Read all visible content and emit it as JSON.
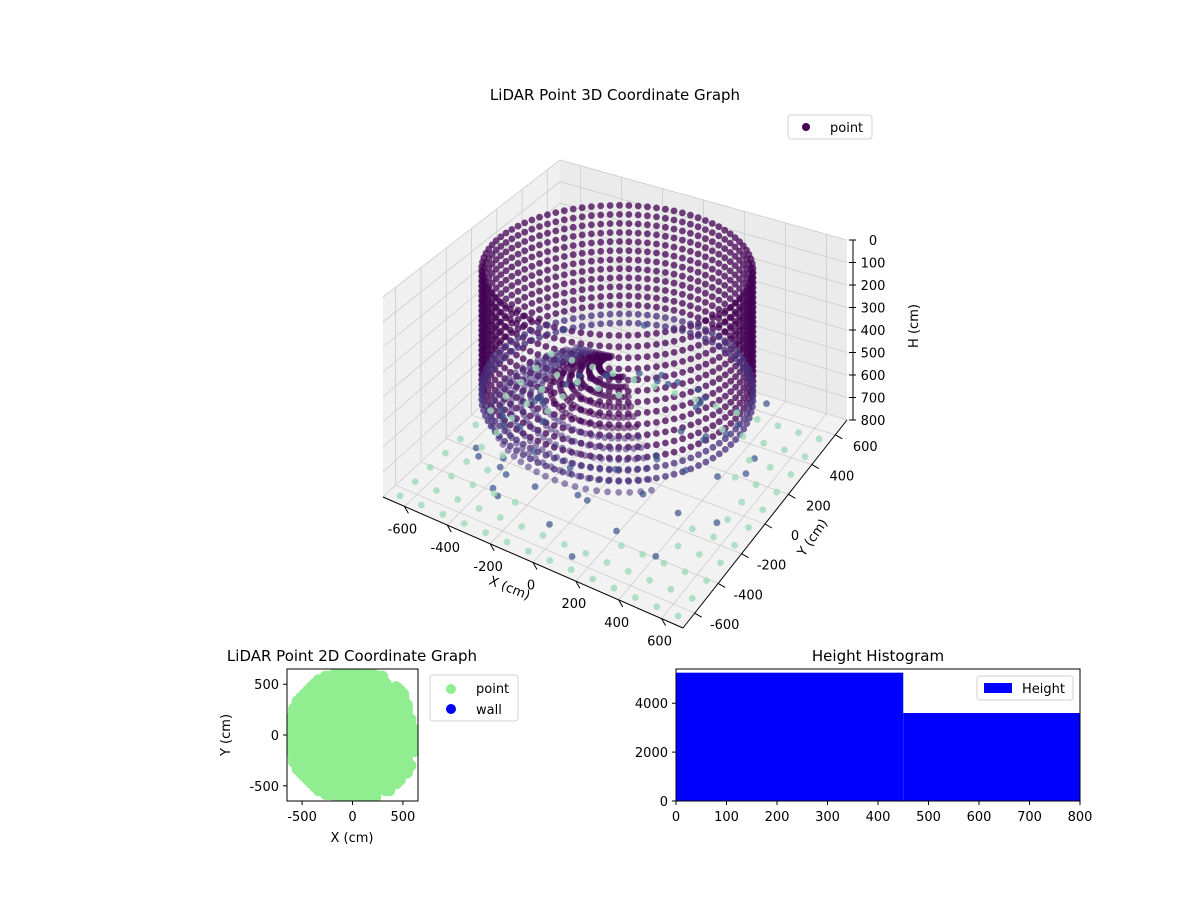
{
  "chart_data": [
    {
      "type": "scatter",
      "title": "LiDAR Point 3D Coordinate Graph",
      "xlabel": "X (cm)",
      "ylabel": "Y (cm)",
      "zlabel": "H (cm)",
      "xlim": [
        -700,
        700
      ],
      "ylim": [
        -700,
        700
      ],
      "zlim": [
        800,
        0
      ],
      "x_ticks": [
        -600,
        -400,
        -200,
        0,
        200,
        400,
        600
      ],
      "y_ticks": [
        -600,
        -400,
        -200,
        0,
        200,
        400,
        600
      ],
      "z_ticks": [
        0,
        100,
        200,
        300,
        400,
        500,
        600,
        700,
        800
      ],
      "grid": true,
      "legend": {
        "position": "top-right",
        "entries": [
          "point"
        ]
      },
      "colors": {
        "point": "#440154",
        "mid": "#3b528b",
        "light": "#a0dab9",
        "pane": "#f2f2f2",
        "grid": "#cccccc"
      },
      "series": [
        {
          "name": "point",
          "wall_ring_radius_cm": 560,
          "wall_height_range_cm": [
            0,
            520
          ],
          "outer_wall_radius_cm": 650,
          "floor_height_cm": 800
        }
      ]
    },
    {
      "type": "scatter",
      "title": "LiDAR Point 2D Coordinate Graph",
      "xlabel": "X (cm)",
      "ylabel": "Y (cm)",
      "xlim": [
        -650,
        650
      ],
      "ylim": [
        -650,
        650
      ],
      "x_ticks": [
        -500,
        0,
        500
      ],
      "y_ticks": [
        -500,
        0,
        500
      ],
      "legend": {
        "position": "outside-right",
        "entries": [
          "point",
          "wall"
        ]
      },
      "series": [
        {
          "name": "point",
          "color": "#90ee90"
        },
        {
          "name": "wall",
          "color": "#0000ff"
        }
      ]
    },
    {
      "type": "bar",
      "title": "Height Histogram",
      "xlabel": "",
      "ylabel": "",
      "xlim": [
        0,
        800
      ],
      "ylim": [
        0,
        5400
      ],
      "x_ticks": [
        0,
        100,
        200,
        300,
        400,
        500,
        600,
        700,
        800
      ],
      "y_ticks": [
        0,
        2000,
        4000
      ],
      "legend": {
        "position": "top-right",
        "entries": [
          "Height"
        ]
      },
      "bins": [
        {
          "start": 0,
          "end": 450,
          "count": 5250
        },
        {
          "start": 450,
          "end": 800,
          "count": 3600
        }
      ],
      "series": [
        {
          "name": "Height",
          "color": "#0000ff"
        }
      ]
    }
  ]
}
